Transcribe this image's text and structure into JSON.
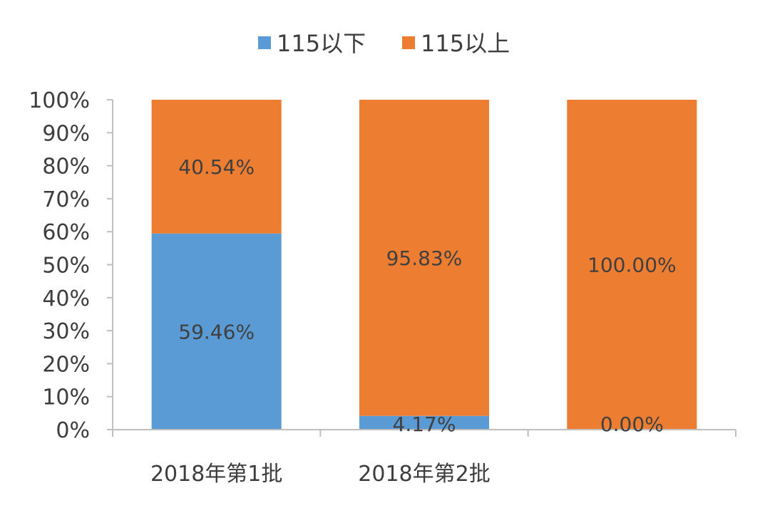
{
  "chart_data": {
    "type": "bar",
    "stacked": true,
    "categories": [
      "2018年第1批",
      "2018年第2批",
      ""
    ],
    "series": [
      {
        "name": "115以下",
        "values": [
          59.46,
          4.17,
          0.0
        ],
        "labels": [
          "59.46%",
          "4.17%",
          "0.00%"
        ],
        "color": "#5b9bd5"
      },
      {
        "name": "115以上",
        "values": [
          40.54,
          95.83,
          100.0
        ],
        "labels": [
          "40.54%",
          "95.83%",
          "100.00%"
        ],
        "color": "#ed7d31"
      }
    ],
    "yticks": [
      "0%",
      "10%",
      "20%",
      "30%",
      "40%",
      "50%",
      "60%",
      "70%",
      "80%",
      "90%",
      "100%"
    ],
    "ylim": [
      0,
      100
    ],
    "ylabel": "",
    "xlabel": "",
    "title": "",
    "legend": "top-center",
    "grid": false
  }
}
